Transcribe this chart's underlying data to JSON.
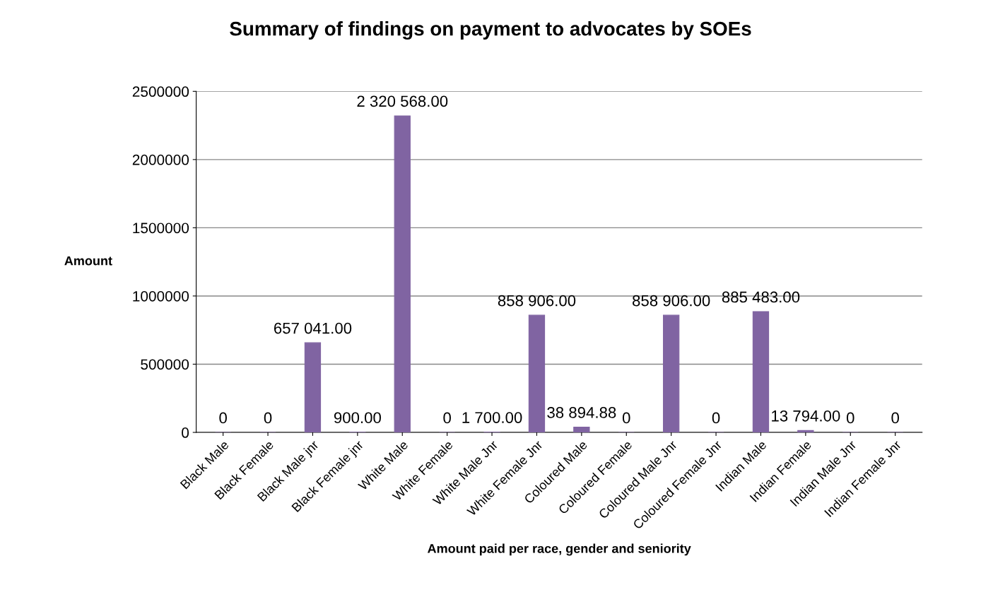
{
  "chart_data": {
    "type": "bar",
    "title": "Summary of findings on payment to advocates by SOEs",
    "xlabel": "Amount paid per race, gender and seniority",
    "ylabel": "Amount",
    "categories": [
      "Black Male",
      "Black Female",
      "Black Male jnr",
      "Black Female jnr",
      "White Male",
      "White Female",
      "White Male Jnr",
      "White Female Jnr",
      "Coloured Male",
      "Coloured Female",
      "Coloured Male Jnr",
      "Coloured Female Jnr",
      "Indian Male",
      "Indian Female",
      "Indian Male Jnr",
      "Indian Female Jnr"
    ],
    "values": [
      0,
      0,
      657041,
      900,
      2320568,
      0,
      1700,
      858906,
      38894.88,
      0,
      858906,
      0,
      885483,
      13794,
      0,
      0
    ],
    "value_labels": [
      "0",
      "0",
      "657 041.00",
      "900.00",
      "2 320 568.00",
      "0",
      "1 700.00",
      "858 906.00",
      "38 894.88",
      "0",
      "858 906.00",
      "0",
      "885 483.00",
      "13 794.00",
      "0",
      "0"
    ],
    "color": "#8064a2",
    "ylim": [
      0,
      2500000
    ],
    "yticks": [
      0,
      500000,
      1000000,
      1500000,
      2000000,
      2500000
    ],
    "grid": "y"
  }
}
